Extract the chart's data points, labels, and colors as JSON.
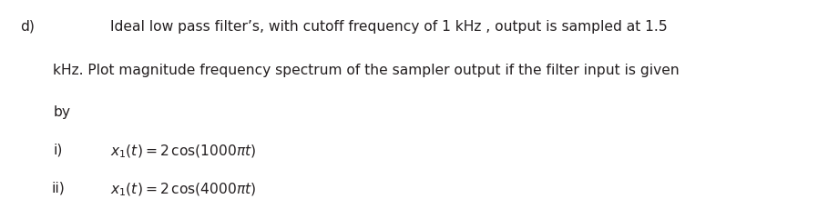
{
  "background_color": "#ffffff",
  "fig_width": 8.98,
  "fig_height": 2.19,
  "dpi": 100,
  "label_d": "d)",
  "line1": "Ideal low pass filter’s, with cutoff frequency of 1 kHz , output is sampled at 1.5",
  "line2": "kHz. Plot magnitude frequency spectrum of the sampler output if the filter input is given",
  "line3": "by",
  "label_i": "i)",
  "label_ii": "ii)",
  "eq1": "$x_1(t) = 2\\,\\cos(1000\\pi t)$",
  "eq2": "$x_1(t) = 2\\,\\cos(4000\\pi t)$",
  "font_size_body": 11.2,
  "text_color": "#231f20",
  "font_family": "DejaVu Sans"
}
